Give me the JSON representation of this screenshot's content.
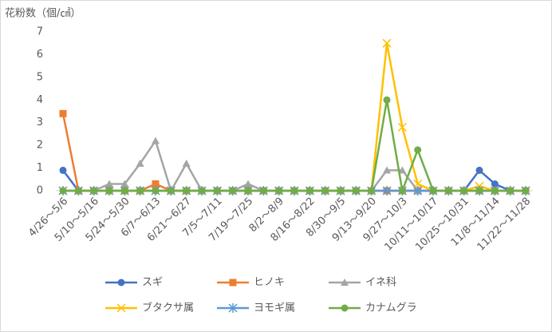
{
  "chart_data": {
    "type": "line",
    "title": "花粉数（個/㎠）",
    "categories": [
      "4/26～5/6",
      null,
      "5/10～5/16",
      null,
      "5/24～5/30",
      null,
      "6/7～6/13",
      null,
      "6/21～6/27",
      null,
      "7/5～7/11",
      null,
      "7/19～7/25",
      null,
      "8/2～8/9",
      null,
      "8/16～8/22",
      null,
      "8/30～9/5",
      null,
      "9/13～9/20",
      null,
      "9/27～10/3",
      null,
      "10/11～10/17",
      null,
      "10/25～10/31",
      null,
      "11/8～11/14",
      null,
      "11/22～11/28"
    ],
    "series": [
      {
        "name": "スギ",
        "color": "#4472c4",
        "marker": "circle",
        "values": [
          0.9,
          0,
          0,
          0,
          0,
          0,
          0,
          0,
          0,
          0,
          0,
          0,
          0,
          0,
          0,
          0,
          0,
          0,
          0,
          0,
          0,
          0,
          0,
          0,
          0,
          0,
          0,
          0.9,
          0.3,
          0,
          0
        ]
      },
      {
        "name": "ヒノキ",
        "color": "#ed7d31",
        "marker": "square",
        "values": [
          3.4,
          0,
          0,
          0,
          0,
          0,
          0.3,
          0,
          0,
          0,
          0,
          0,
          0,
          0,
          0,
          0,
          0,
          0,
          0,
          0,
          0,
          0,
          0,
          0,
          0,
          0,
          0,
          0,
          0,
          0,
          0
        ]
      },
      {
        "name": "イネ科",
        "color": "#a5a5a5",
        "marker": "triangle",
        "values": [
          0,
          0,
          0,
          0.3,
          0.3,
          1.2,
          2.2,
          0,
          1.2,
          0,
          0,
          0,
          0.3,
          0,
          0,
          0,
          0,
          0,
          0,
          0,
          0,
          0.9,
          0.9,
          0,
          0,
          0,
          0,
          0,
          0,
          0,
          0
        ]
      },
      {
        "name": "ブタクサ属",
        "color": "#ffc000",
        "marker": "x",
        "values": [
          0,
          0,
          0,
          0,
          0,
          0,
          0,
          0,
          0,
          0,
          0,
          0,
          0,
          0,
          0,
          0,
          0,
          0,
          0,
          0,
          0,
          6.5,
          2.8,
          0.3,
          0,
          0,
          0,
          0.2,
          0,
          0,
          0
        ]
      },
      {
        "name": "ヨモギ属",
        "color": "#5b9bd5",
        "marker": "star",
        "values": [
          0,
          0,
          0,
          0,
          0,
          0,
          0,
          0,
          0,
          0,
          0,
          0,
          0,
          0,
          0,
          0,
          0,
          0,
          0,
          0,
          0,
          0,
          0,
          0,
          0,
          0,
          0,
          0,
          0,
          0,
          0
        ]
      },
      {
        "name": "カナムグラ",
        "color": "#70ad47",
        "marker": "circle",
        "values": [
          0,
          0,
          0,
          0,
          0,
          0,
          0,
          0,
          0,
          0,
          0,
          0,
          0,
          0,
          0,
          0,
          0,
          0,
          0,
          0,
          0,
          4,
          0,
          1.8,
          0,
          0,
          0,
          0,
          0,
          0,
          0
        ]
      }
    ],
    "ylim": [
      0,
      7
    ],
    "yticks": [
      0,
      1,
      2,
      3,
      4,
      5,
      6,
      7
    ],
    "grid": false,
    "legend": "bottom"
  }
}
